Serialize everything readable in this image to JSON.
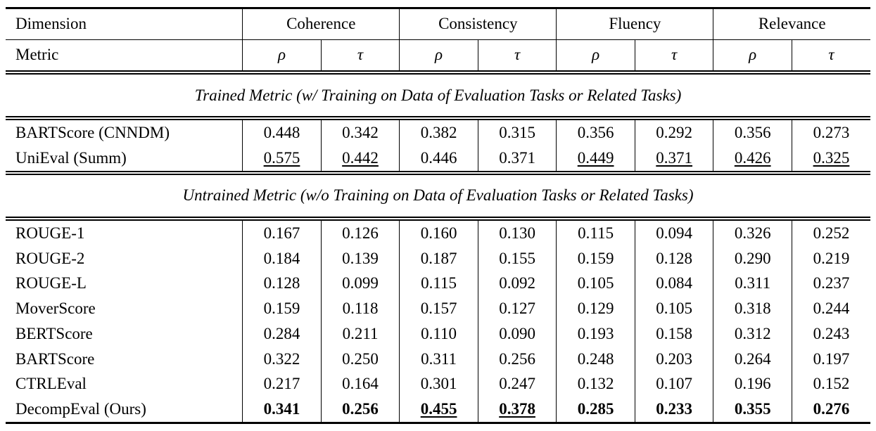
{
  "table": {
    "header": {
      "dimension_label": "Dimension",
      "metric_label": "Metric",
      "groups": [
        "Coherence",
        "Consistency",
        "Fluency",
        "Relevance"
      ],
      "metric_symbols": [
        "ρ",
        "τ",
        "ρ",
        "τ",
        "ρ",
        "τ",
        "ρ",
        "τ"
      ]
    },
    "sections": [
      {
        "title": "Trained Metric (w/ Training on Data of Evaluation Tasks or Related Tasks)",
        "rows": [
          {
            "name": "BARTScore (CNNDM)",
            "values": [
              "0.448",
              "0.342",
              "0.382",
              "0.315",
              "0.356",
              "0.292",
              "0.356",
              "0.273"
            ],
            "styles": [
              "",
              "",
              "",
              "",
              "",
              "",
              "",
              ""
            ]
          },
          {
            "name": "UniEval (Summ)",
            "values": [
              "0.575",
              "0.442",
              "0.446",
              "0.371",
              "0.449",
              "0.371",
              "0.426",
              "0.325"
            ],
            "styles": [
              "u",
              "u",
              "",
              "",
              "u",
              "u",
              "u",
              "u"
            ]
          }
        ]
      },
      {
        "title": "Untrained Metric (w/o Training on Data of Evaluation Tasks or Related Tasks)",
        "rows": [
          {
            "name": "ROUGE-1",
            "values": [
              "0.167",
              "0.126",
              "0.160",
              "0.130",
              "0.115",
              "0.094",
              "0.326",
              "0.252"
            ],
            "styles": [
              "",
              "",
              "",
              "",
              "",
              "",
              "",
              ""
            ]
          },
          {
            "name": "ROUGE-2",
            "values": [
              "0.184",
              "0.139",
              "0.187",
              "0.155",
              "0.159",
              "0.128",
              "0.290",
              "0.219"
            ],
            "styles": [
              "",
              "",
              "",
              "",
              "",
              "",
              "",
              ""
            ]
          },
          {
            "name": "ROUGE-L",
            "values": [
              "0.128",
              "0.099",
              "0.115",
              "0.092",
              "0.105",
              "0.084",
              "0.311",
              "0.237"
            ],
            "styles": [
              "",
              "",
              "",
              "",
              "",
              "",
              "",
              ""
            ]
          },
          {
            "name": "MoverScore",
            "values": [
              "0.159",
              "0.118",
              "0.157",
              "0.127",
              "0.129",
              "0.105",
              "0.318",
              "0.244"
            ],
            "styles": [
              "",
              "",
              "",
              "",
              "",
              "",
              "",
              ""
            ]
          },
          {
            "name": "BERTScore",
            "values": [
              "0.284",
              "0.211",
              "0.110",
              "0.090",
              "0.193",
              "0.158",
              "0.312",
              "0.243"
            ],
            "styles": [
              "",
              "",
              "",
              "",
              "",
              "",
              "",
              ""
            ]
          },
          {
            "name": "BARTScore",
            "values": [
              "0.322",
              "0.250",
              "0.311",
              "0.256",
              "0.248",
              "0.203",
              "0.264",
              "0.197"
            ],
            "styles": [
              "",
              "",
              "",
              "",
              "",
              "",
              "",
              ""
            ]
          },
          {
            "name": "CTRLEval",
            "values": [
              "0.217",
              "0.164",
              "0.301",
              "0.247",
              "0.132",
              "0.107",
              "0.196",
              "0.152"
            ],
            "styles": [
              "",
              "",
              "",
              "",
              "",
              "",
              "",
              ""
            ]
          },
          {
            "name": "DecompEval (Ours)",
            "values": [
              "0.341",
              "0.256",
              "0.455",
              "0.378",
              "0.285",
              "0.233",
              "0.355",
              "0.276"
            ],
            "styles": [
              "b",
              "b",
              "bu",
              "bu",
              "b",
              "b",
              "b",
              "b"
            ]
          }
        ]
      }
    ]
  }
}
